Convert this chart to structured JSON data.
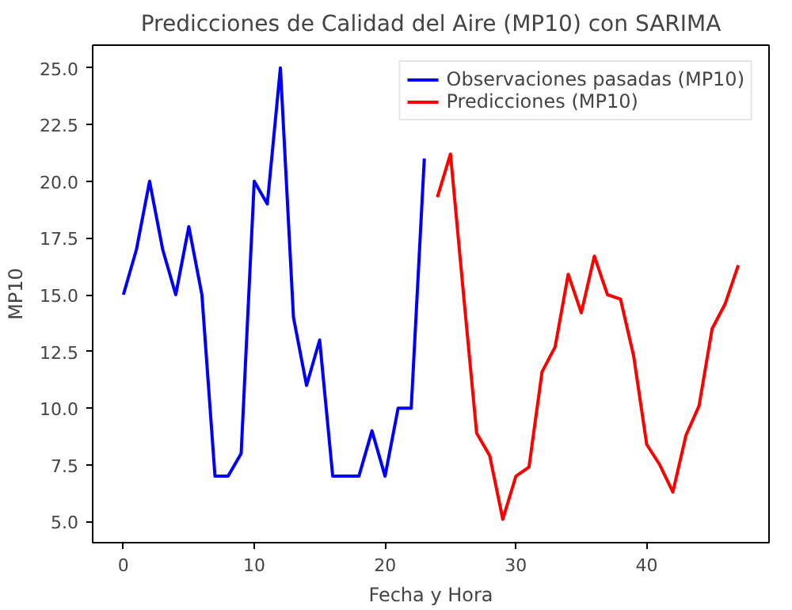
{
  "chart_data": {
    "type": "line",
    "title": "Predicciones de Calidad del Aire (MP10) con SARIMA",
    "xlabel": "Fecha y Hora",
    "ylabel": "MP10",
    "series": [
      {
        "name": "Observaciones pasadas (MP10)",
        "color": "#0000ff",
        "x": [
          0,
          1,
          2,
          3,
          4,
          5,
          6,
          7,
          8,
          9,
          10,
          11,
          12,
          13,
          14,
          15,
          16,
          17,
          18,
          19,
          20,
          21,
          22,
          23
        ],
        "values": [
          15,
          17,
          20,
          17,
          15,
          18,
          15,
          7,
          7,
          8,
          20,
          19,
          25,
          14,
          11,
          13,
          7,
          7,
          7,
          9,
          7,
          10,
          10,
          21
        ]
      },
      {
        "name": "Predicciones (MP10)",
        "color": "#ff0000",
        "x": [
          24,
          25,
          26,
          27,
          28,
          29,
          30,
          31,
          32,
          33,
          34,
          35,
          36,
          37,
          38,
          39,
          40,
          41,
          42,
          43,
          44,
          45,
          46,
          47
        ],
        "values": [
          19.3,
          21.2,
          15.0,
          8.9,
          7.9,
          5.1,
          7.0,
          7.4,
          11.6,
          12.7,
          15.9,
          14.2,
          16.7,
          15.0,
          14.8,
          12.3,
          8.4,
          7.5,
          6.3,
          8.8,
          10.1,
          13.5,
          14.6,
          16.3
        ]
      }
    ],
    "xlim": [
      -2.35,
      49.35
    ],
    "xticks": [
      0,
      10,
      20,
      30,
      40
    ],
    "ylim": [
      4.07,
      26.0
    ],
    "yticks": [
      {
        "value": 5,
        "label": "5.0"
      },
      {
        "value": 7.5,
        "label": "7.5"
      },
      {
        "value": 10,
        "label": "10.0"
      },
      {
        "value": 12.5,
        "label": "12.5"
      },
      {
        "value": 15,
        "label": "15.0"
      },
      {
        "value": 17.5,
        "label": "17.5"
      },
      {
        "value": 20,
        "label": "20.0"
      },
      {
        "value": 22.5,
        "label": "22.5"
      },
      {
        "value": 25,
        "label": "25.0"
      }
    ],
    "legend": "top right",
    "grid": false
  }
}
